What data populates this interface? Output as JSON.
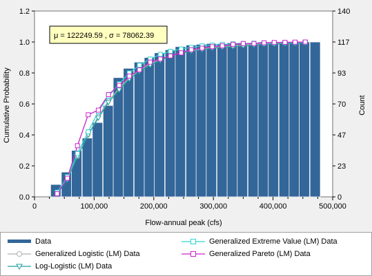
{
  "chart_data": {
    "type": "bar",
    "xlabel": "Flow-annual peak (cfs)",
    "ylabel": "Cumulative Probability",
    "y2label": "Count",
    "xlim": [
      0,
      500000
    ],
    "ylim": [
      0,
      1.2
    ],
    "y2lim": [
      0,
      140
    ],
    "xticks": [
      "0",
      "100,000",
      "200,000",
      "300,000",
      "400,000",
      "500,000"
    ],
    "yticks": [
      "0.0",
      "0.2",
      "0.4",
      "0.6",
      "0.8",
      "1.0",
      "1.2"
    ],
    "y2ticks": [
      "0",
      "23",
      "47",
      "70",
      "93",
      "117",
      "140"
    ],
    "annotation": "μ = 122249.59 , σ = 78062.39",
    "colors": {
      "bars": "#336699",
      "logistic": "#b0b0b0",
      "loglogistic": "#20a0a0",
      "gev": "#30d0d0",
      "pareto": "#cc22cc"
    },
    "bars": {
      "bin_starts": [
        27000,
        45000,
        62000,
        80000,
        97000,
        115000,
        132000,
        149000,
        167000,
        184000,
        201000,
        219000,
        236000,
        254000,
        271000,
        288000,
        306000,
        323000,
        340000,
        358000,
        375000,
        392000,
        410000,
        427000,
        444000,
        462000
      ],
      "bin_width": 17300,
      "values": [
        0.08,
        0.16,
        0.3,
        0.38,
        0.48,
        0.59,
        0.77,
        0.83,
        0.87,
        0.9,
        0.93,
        0.95,
        0.97,
        0.98,
        0.985,
        0.99,
        0.99,
        0.995,
        0.995,
        0.995,
        1.0,
        1.0,
        1.0,
        1.0,
        1.0,
        1.0
      ]
    },
    "series": [
      {
        "name": "Generalized Logistic (LM) Data",
        "key": "logistic",
        "marker": "circle",
        "x": [
          38000,
          55000,
          72000,
          90000,
          107000,
          124000,
          142000,
          159000,
          176000,
          194000,
          211000,
          228000,
          246000,
          263000,
          281000,
          298000,
          315000,
          333000,
          350000,
          368000,
          385000,
          402000,
          420000,
          437000,
          454000
        ],
        "y": [
          0.02,
          0.12,
          0.26,
          0.4,
          0.52,
          0.62,
          0.7,
          0.77,
          0.82,
          0.86,
          0.89,
          0.91,
          0.93,
          0.945,
          0.955,
          0.965,
          0.97,
          0.975,
          0.98,
          0.985,
          0.988,
          0.99,
          0.992,
          0.994,
          0.996
        ]
      },
      {
        "name": "Log-Logistic (LM) Data",
        "key": "loglogistic",
        "marker": "triangle",
        "x": [
          38000,
          55000,
          72000,
          90000,
          107000,
          124000,
          142000,
          159000,
          176000,
          194000,
          211000,
          228000,
          246000,
          263000,
          281000,
          298000,
          315000,
          333000,
          350000,
          368000,
          385000,
          402000,
          420000,
          437000,
          454000
        ],
        "y": [
          0.02,
          0.11,
          0.26,
          0.4,
          0.51,
          0.61,
          0.69,
          0.76,
          0.81,
          0.85,
          0.88,
          0.91,
          0.93,
          0.94,
          0.95,
          0.96,
          0.965,
          0.97,
          0.975,
          0.98,
          0.985,
          0.987,
          0.99,
          0.992,
          0.994
        ]
      },
      {
        "name": "Generalized Extreme Value (LM) Data",
        "key": "gev",
        "marker": "square",
        "x": [
          38000,
          55000,
          72000,
          90000,
          107000,
          124000,
          142000,
          159000,
          176000,
          194000,
          211000,
          228000,
          246000,
          263000,
          281000,
          298000,
          315000,
          333000,
          350000,
          368000,
          385000,
          402000,
          420000,
          437000,
          454000
        ],
        "y": [
          0.03,
          0.13,
          0.28,
          0.42,
          0.55,
          0.65,
          0.73,
          0.8,
          0.85,
          0.89,
          0.92,
          0.94,
          0.955,
          0.965,
          0.975,
          0.98,
          0.985,
          0.988,
          0.99,
          0.992,
          0.994,
          0.995,
          0.996,
          0.997,
          0.998
        ]
      },
      {
        "name": "Generalized Pareto (LM) Data",
        "key": "pareto",
        "marker": "square",
        "x": [
          38000,
          55000,
          72000,
          90000,
          107000,
          124000,
          142000,
          159000,
          176000,
          194000,
          211000,
          228000,
          246000,
          263000,
          281000,
          298000,
          315000,
          333000,
          350000,
          368000,
          385000,
          402000,
          420000,
          437000,
          454000
        ],
        "y": [
          0.02,
          0.12,
          0.33,
          0.53,
          0.56,
          0.66,
          0.72,
          0.78,
          0.82,
          0.87,
          0.89,
          0.91,
          0.93,
          0.95,
          0.96,
          0.97,
          0.975,
          0.985,
          0.99,
          0.99,
          0.995,
          0.997,
          0.998,
          0.999,
          1.0
        ]
      }
    ],
    "legend": {
      "data_label": "Data",
      "logistic_label": "Generalized Logistic (LM) Data",
      "loglogistic_label": "Log-Logistic (LM) Data",
      "gev_label": "Generalized Extreme Value (LM) Data",
      "pareto_label": "Generalized Pareto (LM) Data"
    }
  }
}
